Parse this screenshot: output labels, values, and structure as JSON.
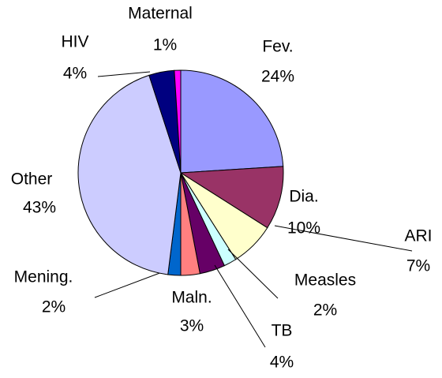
{
  "chart_data": {
    "type": "pie",
    "categories": [
      "Fev.",
      "Dia.",
      "ARI",
      "Measles",
      "TB",
      "Maln.",
      "Mening.",
      "Other",
      "HIV",
      "Maternal"
    ],
    "values": [
      24,
      10,
      7,
      2,
      4,
      3,
      2,
      43,
      4,
      1
    ],
    "value_labels": [
      "24%",
      "10%",
      "7%",
      "2%",
      "4%",
      "3%",
      "2%",
      "43%",
      "4%",
      "1%"
    ],
    "colors": [
      "#9999ff",
      "#993366",
      "#ffffcc",
      "#ccffff",
      "#660066",
      "#ff8080",
      "#0066cc",
      "#ccccff",
      "#000080",
      "#ff00ff"
    ]
  }
}
